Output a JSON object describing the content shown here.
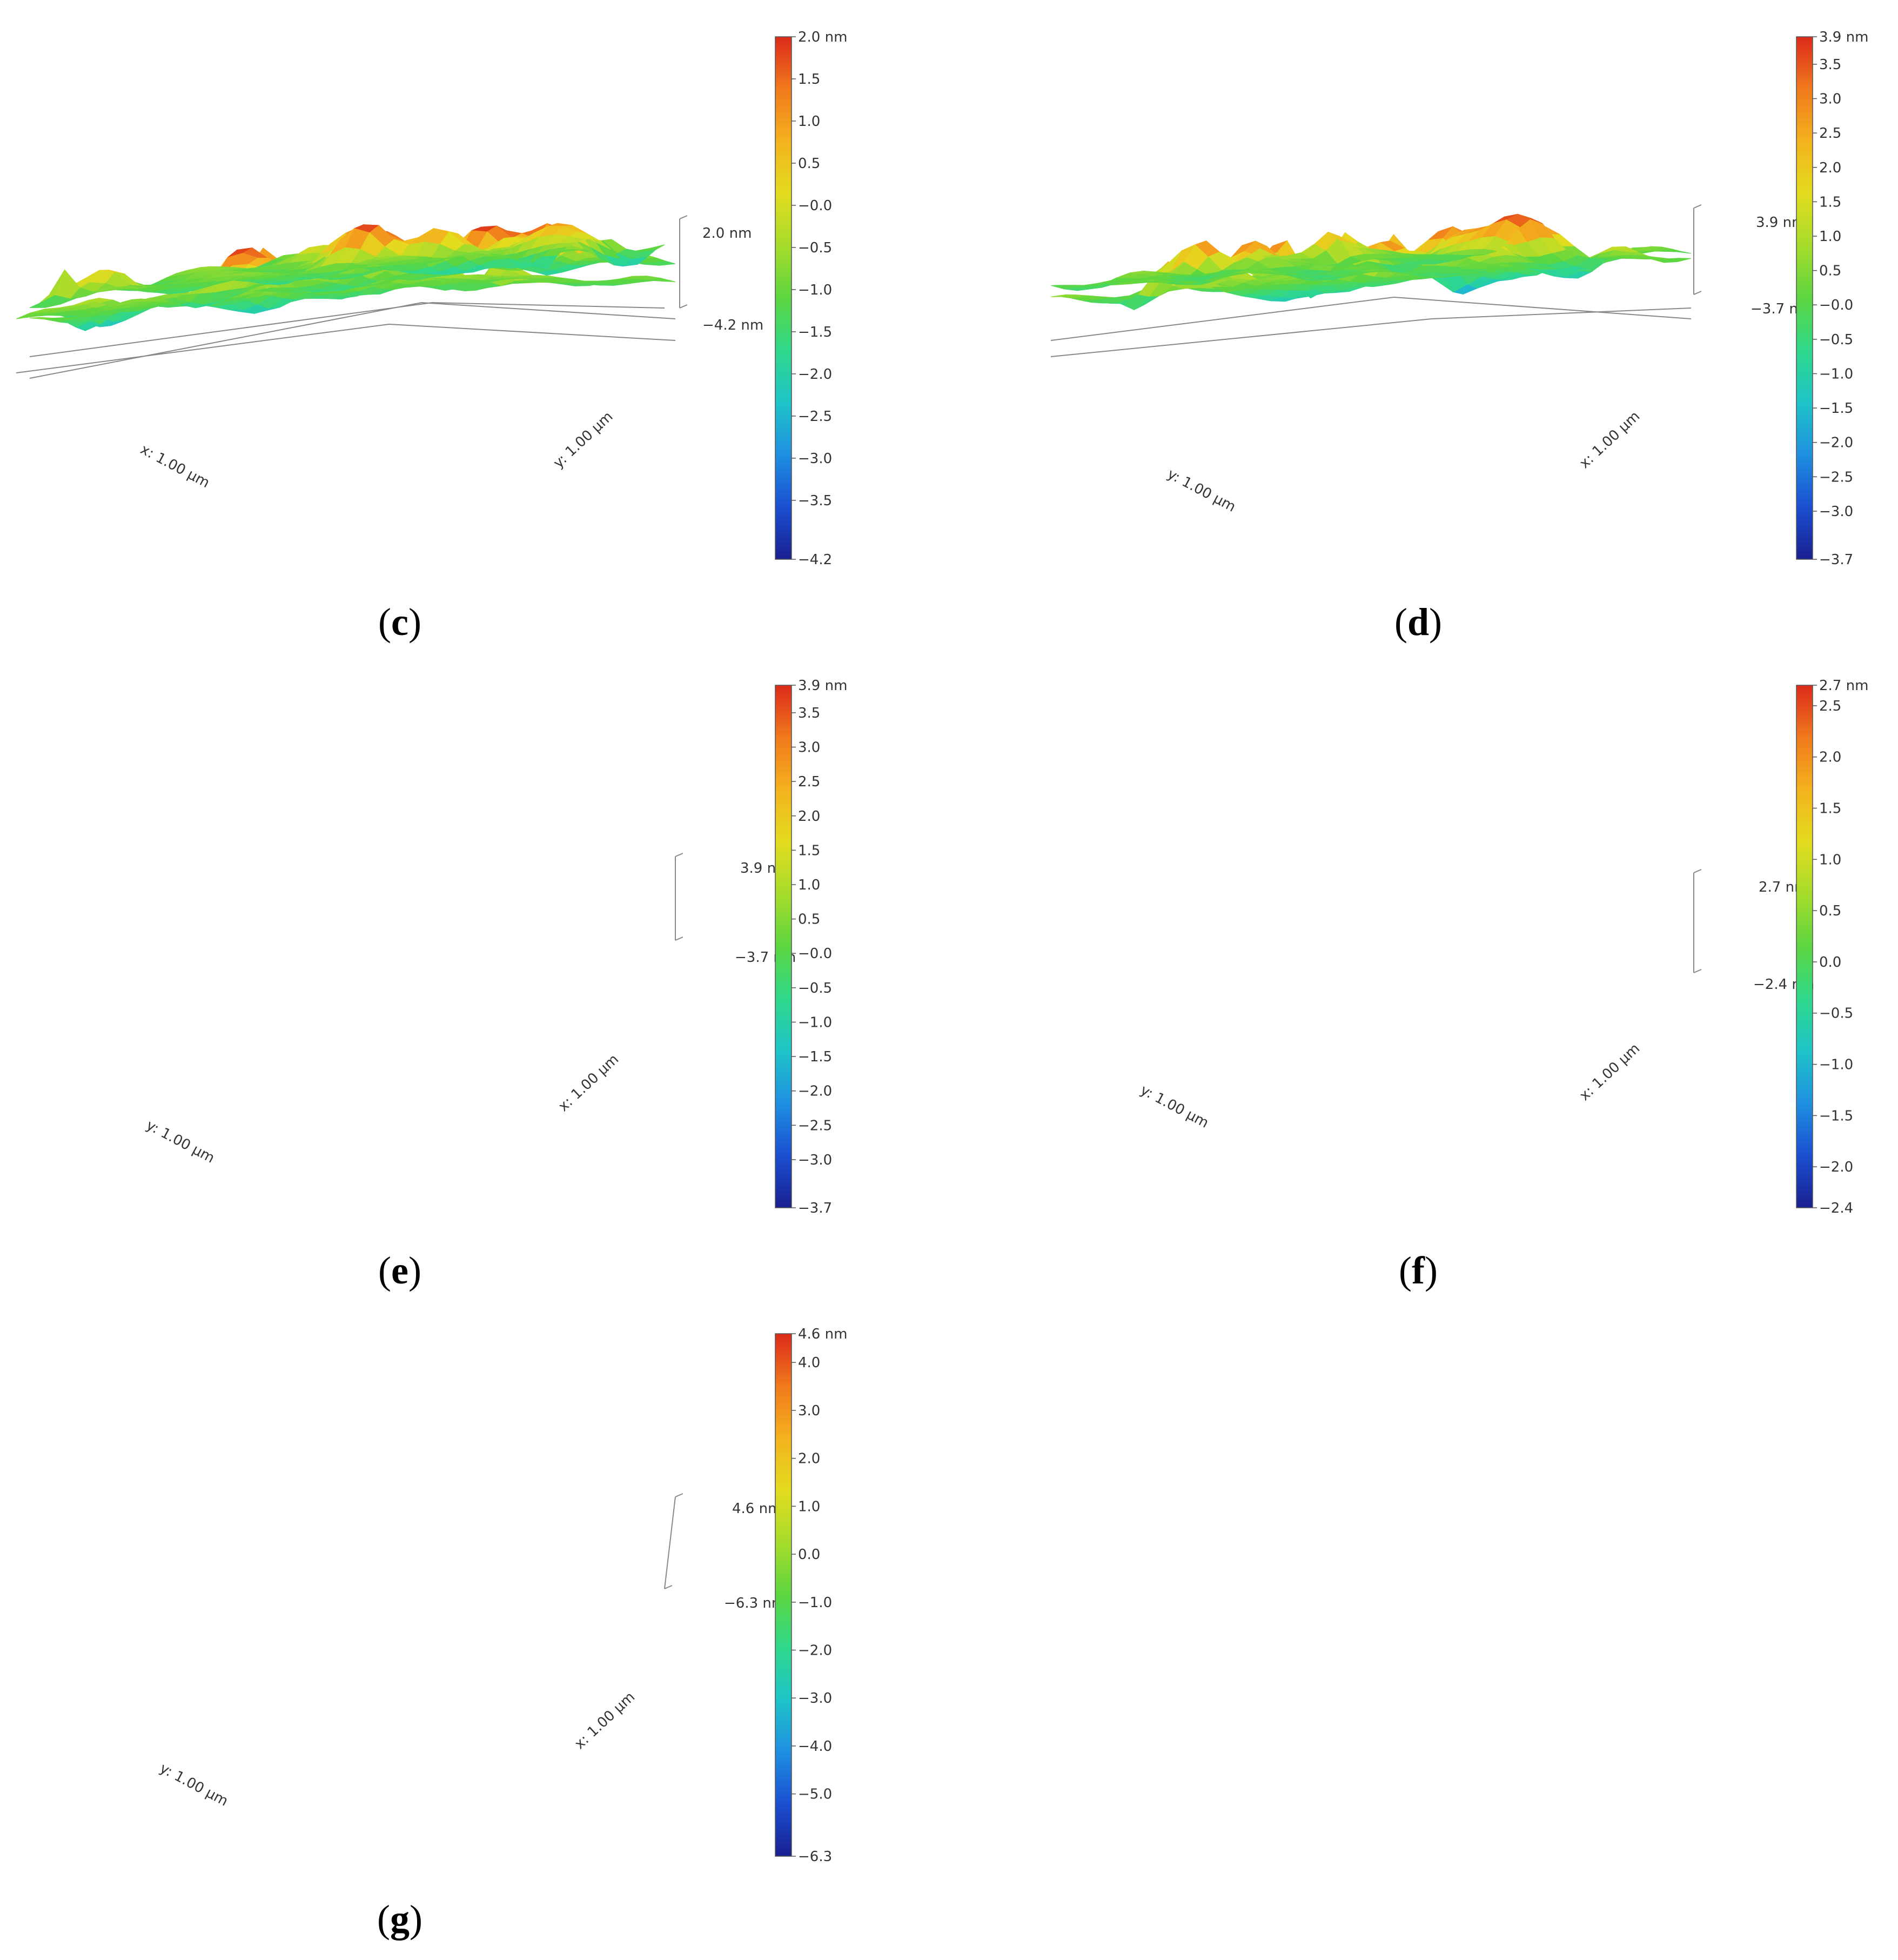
{
  "panels": [
    {
      "id": "c",
      "label_open": "(",
      "label_letter": "c",
      "label_close": ")",
      "axis_a_label": "x: 1.00 µm",
      "axis_b_label": "y: 1.00 µm",
      "z_max_label": "2.0 nm",
      "z_min_label": "−4.2 nm",
      "colorbar": {
        "min": -4.2,
        "max": 2.0,
        "ticks": [
          "2.0 nm",
          "1.5",
          "1.0",
          "0.5",
          "−0.0",
          "−0.5",
          "−1.0",
          "−1.5",
          "−2.0",
          "−2.5",
          "−3.0",
          "−3.5",
          "−4.2"
        ],
        "tick_values": [
          2.0,
          1.5,
          1.0,
          0.5,
          0.0,
          -0.5,
          -1.0,
          -1.5,
          -2.0,
          -2.5,
          -3.0,
          -3.5,
          -4.2
        ]
      }
    },
    {
      "id": "d",
      "label_open": "(",
      "label_letter": "d",
      "label_close": ")",
      "axis_a_label": "y: 1.00 µm",
      "axis_b_label": "x: 1.00 µm",
      "z_max_label": "3.9 nm",
      "z_min_label": "−3.7 nm",
      "colorbar": {
        "min": -3.7,
        "max": 3.9,
        "ticks": [
          "3.9 nm",
          "3.5",
          "3.0",
          "2.5",
          "2.0",
          "1.5",
          "1.0",
          "0.5",
          "−0.0",
          "−0.5",
          "−1.0",
          "−1.5",
          "−2.0",
          "−2.5",
          "−3.0",
          "−3.7"
        ],
        "tick_values": [
          3.9,
          3.5,
          3.0,
          2.5,
          2.0,
          1.5,
          1.0,
          0.5,
          0.0,
          -0.5,
          -1.0,
          -1.5,
          -2.0,
          -2.5,
          -3.0,
          -3.7
        ]
      }
    },
    {
      "id": "e",
      "label_open": "(",
      "label_letter": "e",
      "label_close": ")",
      "axis_a_label": "y: 1.00 µm",
      "axis_b_label": "x: 1.00 µm",
      "z_max_label": "3.9 nm",
      "z_min_label": "−3.7 nm",
      "colorbar": {
        "min": -3.7,
        "max": 3.9,
        "ticks": [
          "3.9 nm",
          "3.5",
          "3.0",
          "2.5",
          "2.0",
          "1.5",
          "1.0",
          "0.5",
          "−0.0",
          "−0.5",
          "−1.0",
          "−1.5",
          "−2.0",
          "−2.5",
          "−3.0",
          "−3.7"
        ],
        "tick_values": [
          3.9,
          3.5,
          3.0,
          2.5,
          2.0,
          1.5,
          1.0,
          0.5,
          0.0,
          -0.5,
          -1.0,
          -1.5,
          -2.0,
          -2.5,
          -3.0,
          -3.7
        ]
      }
    },
    {
      "id": "f",
      "label_open": "(",
      "label_letter": "f",
      "label_close": ")",
      "axis_a_label": "y: 1.00 µm",
      "axis_b_label": "x: 1.00 µm",
      "z_max_label": "2.7 nm",
      "z_min_label": "−2.4 nm",
      "colorbar": {
        "min": -2.4,
        "max": 2.7,
        "ticks": [
          "2.7 nm",
          "2.5",
          "2.0",
          "1.5",
          "1.0",
          "0.5",
          "0.0",
          "−0.5",
          "−1.0",
          "−1.5",
          "−2.0",
          "−2.4"
        ],
        "tick_values": [
          2.7,
          2.5,
          2.0,
          1.5,
          1.0,
          0.5,
          0.0,
          -0.5,
          -1.0,
          -1.5,
          -2.0,
          -2.4
        ]
      }
    },
    {
      "id": "g",
      "label_open": "(",
      "label_letter": "g",
      "label_close": ")",
      "axis_a_label": "y: 1.00 µm",
      "axis_b_label": "x: 1.00 µm",
      "z_max_label": "4.6 nm",
      "z_min_label": "−6.3 nm",
      "colorbar": {
        "min": -6.3,
        "max": 4.6,
        "ticks": [
          "4.6 nm",
          "4.0",
          "3.0",
          "2.0",
          "1.0",
          "0.0",
          "−1.0",
          "−2.0",
          "−3.0",
          "−4.0",
          "−5.0",
          "−6.3"
        ],
        "tick_values": [
          4.6,
          4.0,
          3.0,
          2.0,
          1.0,
          0.0,
          -1.0,
          -2.0,
          -3.0,
          -4.0,
          -5.0,
          -6.3
        ]
      }
    }
  ],
  "colormap": [
    "#1a1f8f",
    "#1a4fd0",
    "#1f8fe0",
    "#1fc4c8",
    "#2fd88a",
    "#5cd640",
    "#a6dc2c",
    "#e3dc1e",
    "#f4b21e",
    "#f07a1c",
    "#dc2a1a"
  ]
}
